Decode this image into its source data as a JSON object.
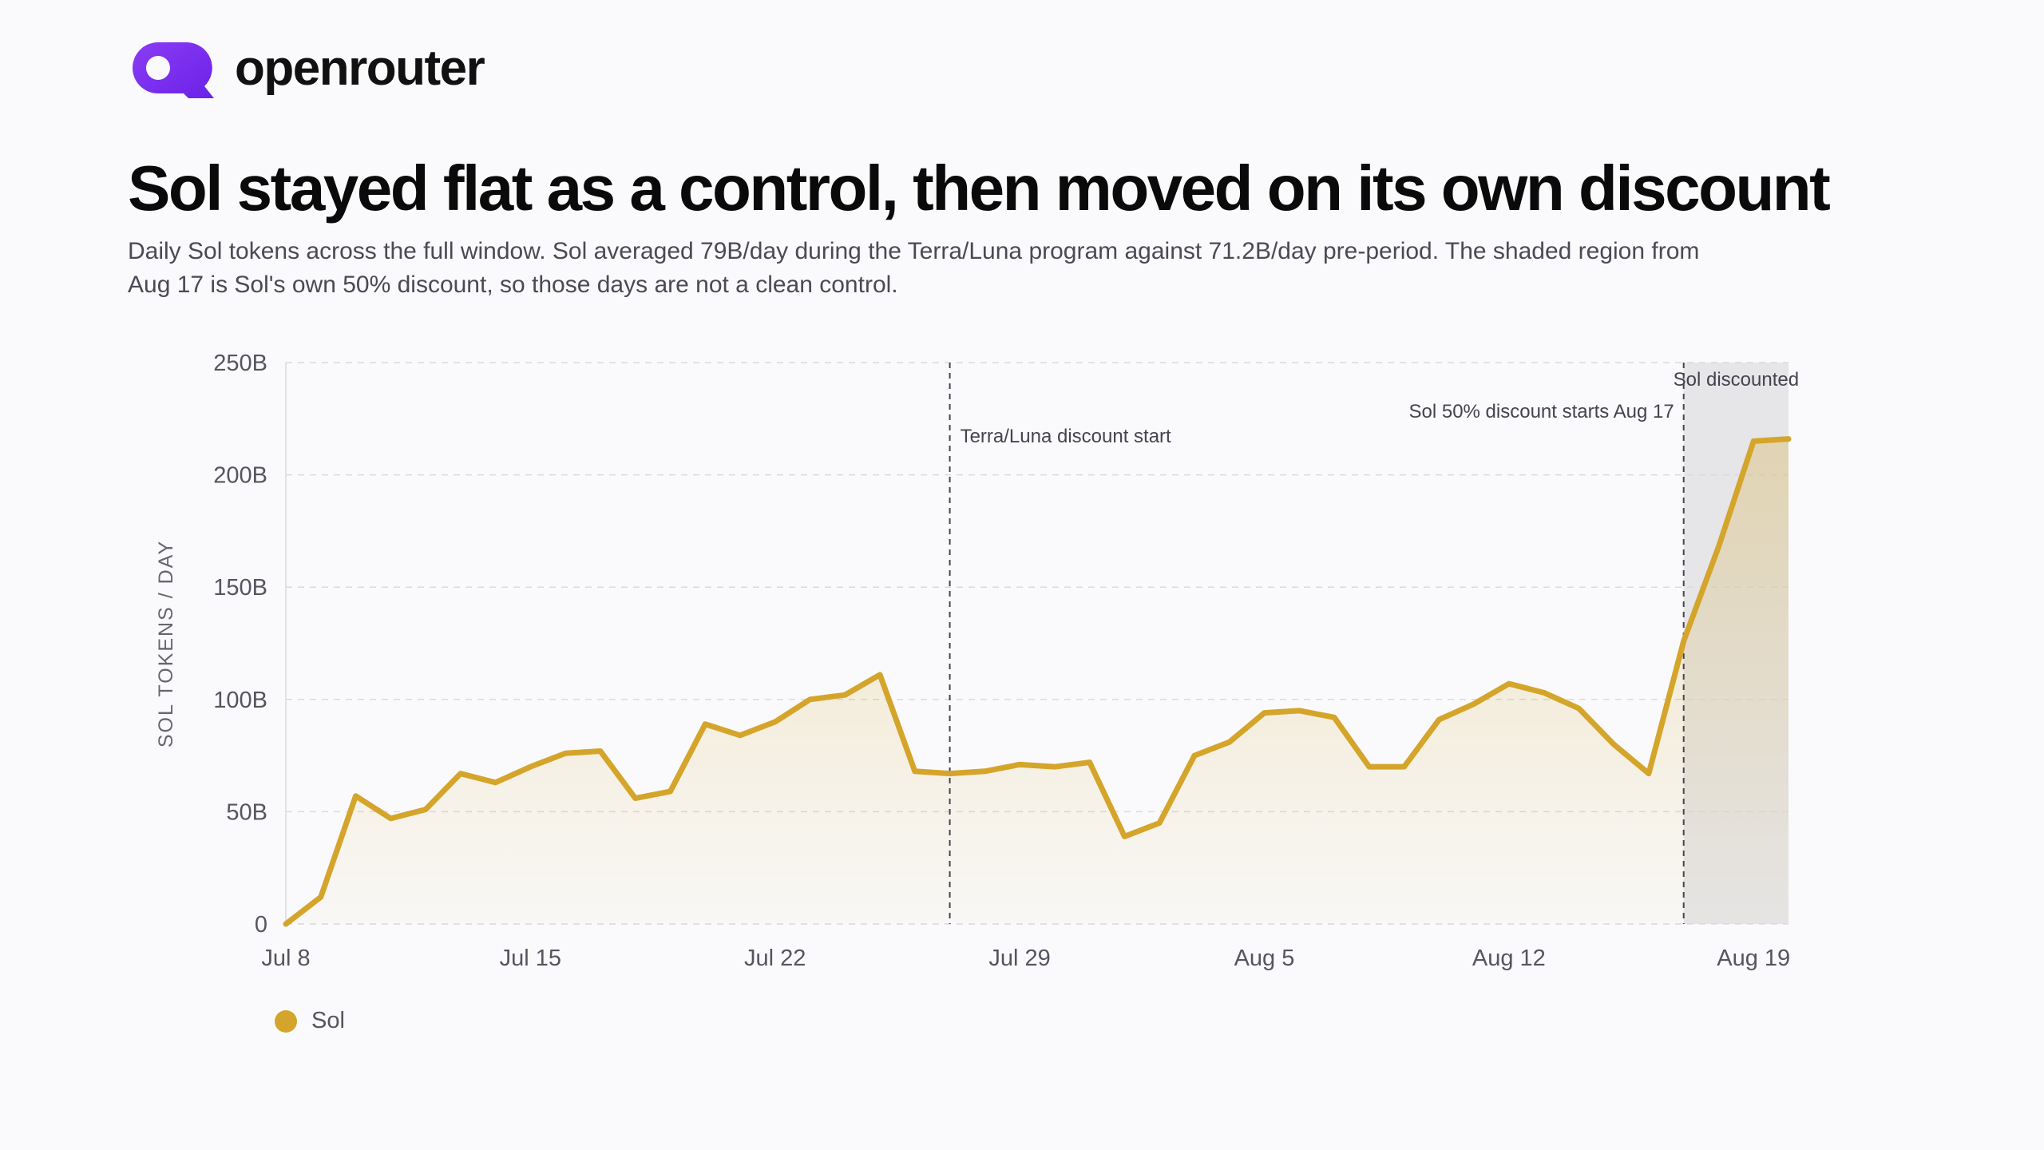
{
  "brand": {
    "name": "openrouter",
    "logo_icon": "openrouter-logo-icon",
    "accent": "#7b2ff0"
  },
  "title": "Sol stayed flat as a control, then moved on its own discount",
  "subtitle": "Daily Sol tokens across the full window. Sol averaged 79B/day during the Terra/Luna program against 71.2B/day pre-period. The shaded region from Aug 17 is Sol's own 50% discount, so those days are not a clean control.",
  "chart_data": {
    "type": "area",
    "ylabel": "SOL TOKENS / DAY",
    "xlabel": "",
    "ylim": [
      0,
      250
    ],
    "y_unit": "B",
    "y_ticks": [
      0,
      50,
      100,
      150,
      200,
      250
    ],
    "y_tick_labels": [
      "0",
      "50B",
      "100B",
      "150B",
      "200B",
      "250B"
    ],
    "x_start": "Jul 8",
    "x_tick_labels": [
      "Jul 8",
      "Jul 15",
      "Jul 22",
      "Jul 29",
      "Aug 5",
      "Aug 12",
      "Aug 19"
    ],
    "x_tick_indices": [
      0,
      7,
      14,
      21,
      28,
      35,
      42
    ],
    "grid": true,
    "series": [
      {
        "name": "Sol",
        "color": "#d4a52a",
        "values": [
          0,
          12,
          57,
          47,
          51,
          67,
          63,
          70,
          76,
          77,
          56,
          59,
          89,
          84,
          90,
          100,
          102,
          111,
          68,
          67,
          68,
          71,
          70,
          72,
          39,
          45,
          75,
          81,
          94,
          95,
          92,
          70,
          70,
          91,
          98,
          107,
          103,
          96,
          80,
          67,
          126,
          168,
          215,
          216
        ]
      }
    ],
    "annotations": [
      {
        "index": 19,
        "label": "Terra/Luna discount start"
      },
      {
        "index": 40,
        "label": "Sol 50% discount starts Aug 17"
      }
    ],
    "shaded_region": {
      "from_index": 40,
      "to_index": 43,
      "label": "Sol discounted",
      "color": "#e6e6e9"
    },
    "legend": [
      {
        "label": "Sol",
        "color": "#d4a52a"
      }
    ],
    "legend_position": "bottom-left"
  }
}
